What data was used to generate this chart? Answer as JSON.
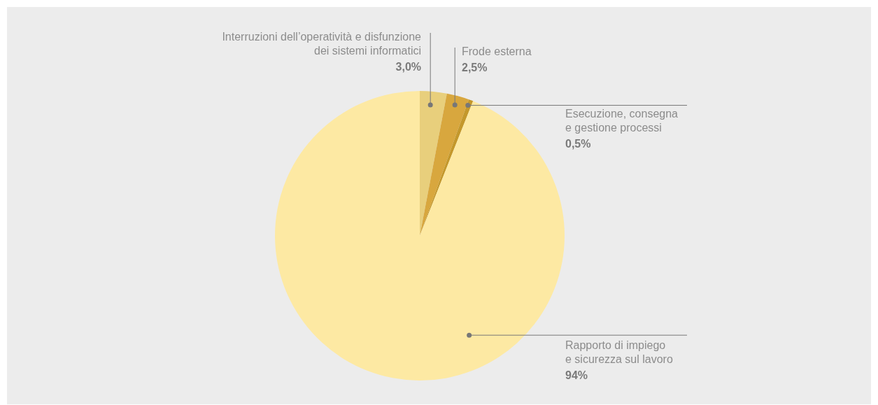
{
  "chart_data": {
    "type": "pie",
    "categories": [
      "Interruzioni dell’operatività e disfunzione dei sistemi informatici",
      "Frode esterna",
      "Esecuzione, consegna e gestione processi",
      "Rapporto di impiego e sicurezza sul lavoro"
    ],
    "values": [
      3.0,
      2.5,
      0.5,
      94
    ],
    "colors": [
      "#e8cf7c",
      "#d8a73e",
      "#c4982b",
      "#fde9a3"
    ],
    "value_labels": [
      "3,0%",
      "2,5%",
      "0,5%",
      "94%"
    ]
  }
}
